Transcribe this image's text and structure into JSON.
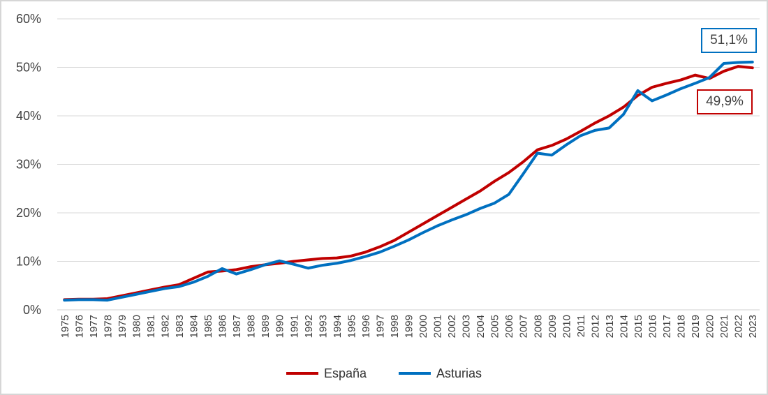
{
  "chart_data": {
    "type": "line",
    "title": "",
    "xlabel": "",
    "ylabel": "",
    "x": [
      "1975",
      "1976",
      "1977",
      "1978",
      "1979",
      "1980",
      "1981",
      "1982",
      "1983",
      "1984",
      "1985",
      "1986",
      "1987",
      "1988",
      "1989",
      "1990",
      "1991",
      "1992",
      "1993",
      "1994",
      "1995",
      "1996",
      "1997",
      "1998",
      "1999",
      "2000",
      "2001",
      "2002",
      "2003",
      "2004",
      "2005",
      "2006",
      "2007",
      "2008",
      "2009",
      "2010",
      "2011",
      "2012",
      "2013",
      "2014",
      "2015",
      "2016",
      "2017",
      "2018",
      "2019",
      "2020",
      "2021",
      "2022",
      "2023"
    ],
    "series": [
      {
        "name": "España",
        "color": "#C00000",
        "values": [
          2.1,
          2.2,
          2.2,
          2.3,
          2.9,
          3.5,
          4.1,
          4.7,
          5.2,
          6.5,
          7.8,
          8.0,
          8.3,
          8.9,
          9.3,
          9.6,
          10.0,
          10.3,
          10.6,
          10.7,
          11.1,
          11.9,
          13.0,
          14.3,
          16.0,
          17.7,
          19.4,
          21.1,
          22.8,
          24.5,
          26.5,
          28.3,
          30.5,
          33.0,
          33.9,
          35.2,
          36.8,
          38.5,
          40.0,
          41.8,
          44.2,
          45.9,
          46.7,
          47.4,
          48.4,
          47.7,
          49.2,
          50.2,
          49.9
        ]
      },
      {
        "name": "Asturias",
        "color": "#0070C0",
        "values": [
          2.0,
          2.1,
          2.1,
          2.0,
          2.6,
          3.2,
          3.8,
          4.4,
          4.8,
          5.7,
          6.9,
          8.5,
          7.4,
          8.3,
          9.3,
          10.1,
          9.4,
          8.6,
          9.2,
          9.6,
          10.2,
          11.0,
          11.9,
          13.1,
          14.4,
          15.9,
          17.3,
          18.5,
          19.6,
          20.9,
          22.0,
          23.8,
          28.0,
          32.3,
          31.9,
          34.0,
          35.9,
          37.0,
          37.5,
          40.3,
          45.2,
          43.1,
          44.3,
          45.6,
          46.7,
          47.9,
          50.8,
          51.0,
          51.1
        ]
      }
    ],
    "ylim": [
      0,
      60
    ],
    "ytick_values": [
      0,
      10,
      20,
      30,
      40,
      50,
      60
    ],
    "ytick_labels": [
      "0%",
      "10%",
      "20%",
      "30%",
      "40%",
      "50%",
      "60%"
    ],
    "grid": true,
    "legend_position": "bottom"
  },
  "annotations": {
    "asturias": {
      "text": "51,1%",
      "color": "#0070C0"
    },
    "espana": {
      "text": "49,9%",
      "color": "#C00000"
    }
  },
  "colors": {
    "gridline": "#d9d9d9",
    "axis_line": "#d0d0d0",
    "tick_text": "#404040",
    "legend_text": "#333333",
    "frame_border": "#d6d6d6",
    "background": "#ffffff"
  }
}
